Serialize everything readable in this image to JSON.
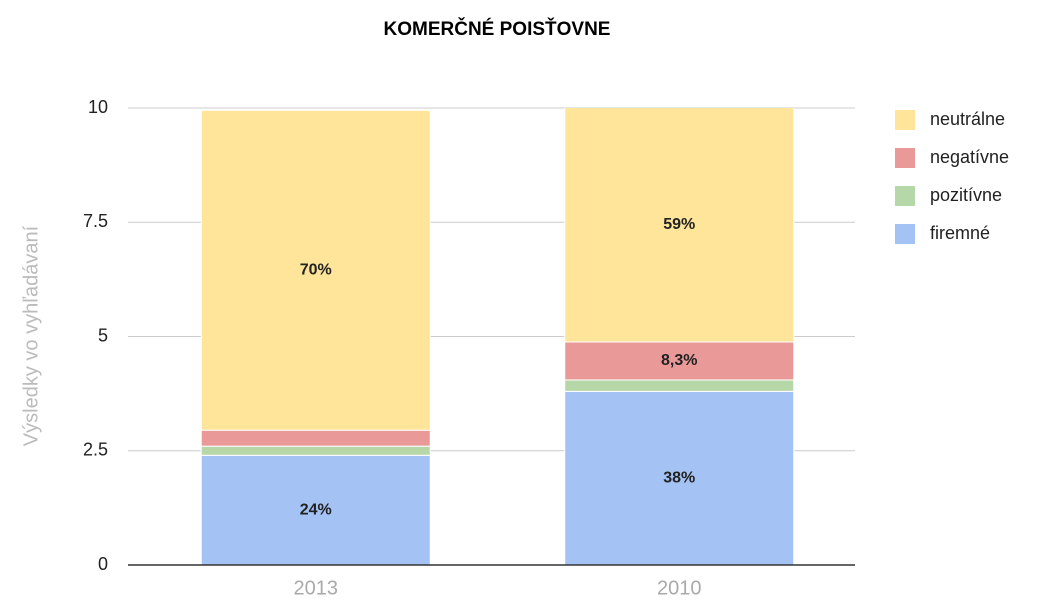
{
  "chart_data": {
    "type": "stacked_bar",
    "title": "KOMERČNÉ POISŤOVNE",
    "y_axis_label": "Výsledky vo vyhľadávaní",
    "categories": [
      "2013",
      "2010"
    ],
    "series": [
      {
        "name": "firemné",
        "color": "#a4c2f4",
        "values": [
          2.4,
          3.8
        ],
        "value_labels": [
          "24%",
          "38%"
        ]
      },
      {
        "name": "pozitívne",
        "color": "#b6d7a8",
        "values": [
          0.2,
          0.25
        ],
        "value_labels": [
          null,
          null
        ]
      },
      {
        "name": "negatívne",
        "color": "#ea9999",
        "values": [
          0.35,
          0.83
        ],
        "value_labels": [
          null,
          "8,3%"
        ]
      },
      {
        "name": "neutrálne",
        "color": "#ffe599",
        "values": [
          7.0,
          5.9
        ],
        "value_labels": [
          "70%",
          "59%"
        ]
      }
    ],
    "ylim": [
      0,
      10
    ],
    "yticks": [
      0,
      2.5,
      5,
      7.5,
      10
    ],
    "grid": true,
    "legend": "right"
  }
}
